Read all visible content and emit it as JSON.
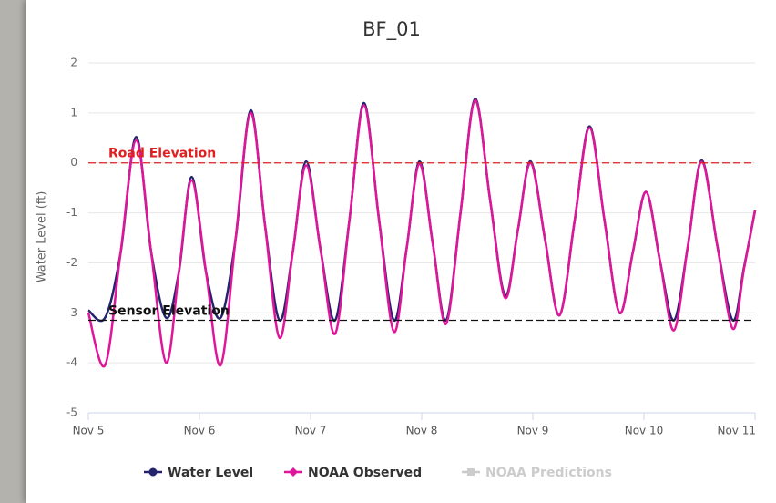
{
  "chart_data": {
    "type": "line",
    "title": "BF_01",
    "ylabel": "Water Level (ft)",
    "x": [
      0,
      0.15,
      0.29,
      0.43,
      0.565,
      0.7,
      0.815,
      0.93,
      1.06,
      1.19,
      1.325,
      1.46,
      1.59,
      1.72,
      1.84,
      1.96,
      2.09,
      2.22,
      2.35,
      2.48,
      2.615,
      2.75,
      2.865,
      2.98,
      3.1,
      3.22,
      3.35,
      3.48,
      3.615,
      3.75,
      3.865,
      3.98,
      4.11,
      4.24,
      4.375,
      4.51,
      4.645,
      4.78,
      4.9,
      5.02,
      5.145,
      5.27,
      5.395,
      5.52,
      5.66,
      5.8,
      5.9,
      6.0
    ],
    "series": [
      {
        "name": "Water Level",
        "color": "#23236e",
        "marker": "circle",
        "values": [
          -2.95,
          -3.1,
          -1.8,
          0.52,
          -1.78,
          -3.1,
          -2.18,
          -0.28,
          -2.2,
          -3.1,
          -1.53,
          1.05,
          -1.25,
          -3.15,
          -1.78,
          0.03,
          -1.74,
          -3.15,
          -1.14,
          1.2,
          -1.12,
          -3.15,
          -1.7,
          0.03,
          -1.62,
          -3.15,
          -0.99,
          1.28,
          -0.73,
          -2.65,
          -1.35,
          0.03,
          -1.53,
          -3.05,
          -1.18,
          0.73,
          -1.15,
          -3.0,
          -1.79,
          -0.58,
          -1.97,
          -3.15,
          -1.67,
          0.05,
          -1.65,
          -3.15,
          -2.1,
          -0.95
        ]
      },
      {
        "name": "NOAA Observed",
        "color": "#e0169a",
        "marker": "diamond",
        "values": [
          -3.0,
          -4.05,
          -1.8,
          0.45,
          -1.78,
          -4.0,
          -2.18,
          -0.35,
          -2.2,
          -4.05,
          -1.53,
          1.0,
          -1.25,
          -3.5,
          -1.78,
          -0.05,
          -1.74,
          -3.42,
          -1.14,
          1.15,
          -1.12,
          -3.38,
          -1.7,
          -0.02,
          -1.62,
          -3.22,
          -0.99,
          1.25,
          -0.73,
          -2.7,
          -1.35,
          0.0,
          -1.53,
          -3.05,
          -1.18,
          0.7,
          -1.15,
          -3.0,
          -1.79,
          -0.58,
          -1.97,
          -3.35,
          -1.67,
          0.02,
          -1.65,
          -3.32,
          -2.13,
          -0.95
        ]
      },
      {
        "name": "NOAA Predictions",
        "color": "#cccccc",
        "marker": "square",
        "visible": false
      }
    ],
    "xlim": [
      0,
      6
    ],
    "xticks": [
      {
        "value": 0,
        "label": "Nov 5"
      },
      {
        "value": 1,
        "label": "Nov 6"
      },
      {
        "value": 2,
        "label": "Nov 7"
      },
      {
        "value": 3,
        "label": "Nov 8"
      },
      {
        "value": 4,
        "label": "Nov 9"
      },
      {
        "value": 5,
        "label": "Nov 10"
      },
      {
        "value": 6,
        "label": "Nov 11"
      }
    ],
    "ylim": [
      -5,
      2
    ],
    "yticks": [
      -5,
      -4,
      -3,
      -2,
      -1,
      0,
      1,
      2
    ],
    "grid": true,
    "legend": "bottom",
    "reference_lines": [
      {
        "label": "Road Elevation",
        "value": 0,
        "color": "#e02020"
      },
      {
        "label": "Sensor Elevation",
        "value": -3.15,
        "color": "#111111"
      }
    ]
  }
}
